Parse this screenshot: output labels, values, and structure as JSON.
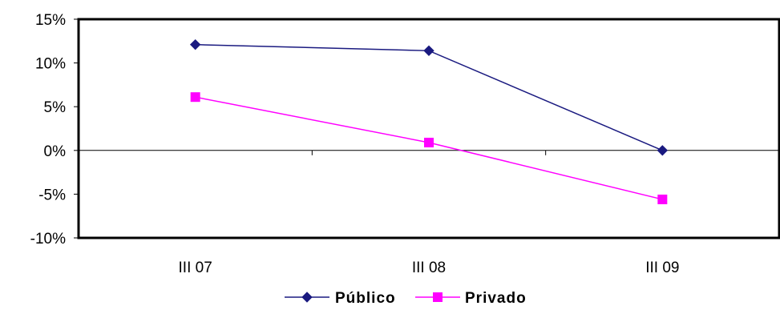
{
  "chart_data": {
    "type": "line",
    "categories": [
      "III 07",
      "III 08",
      "III 09"
    ],
    "series": [
      {
        "name": "Público",
        "values": [
          12.1,
          11.4,
          0.0
        ],
        "color": "#1a1a80",
        "marker": "diamond"
      },
      {
        "name": "Privado",
        "values": [
          6.1,
          0.9,
          -5.6
        ],
        "color": "#ff00ff",
        "marker": "square"
      }
    ],
    "ylim": [
      -10,
      15
    ],
    "yticks": [
      -10,
      -5,
      0,
      5,
      10,
      15
    ],
    "ytick_labels": [
      "-10%",
      "-5%",
      "0%",
      "5%",
      "10%",
      "15%"
    ],
    "title": "",
    "xlabel": "",
    "ylabel": "",
    "grid": false,
    "legend": "bottom"
  }
}
